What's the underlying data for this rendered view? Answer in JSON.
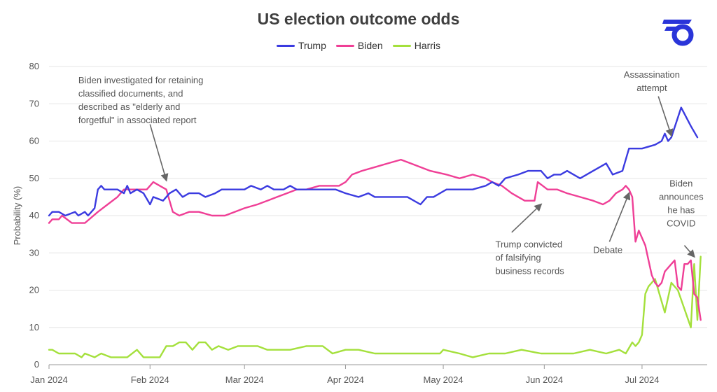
{
  "chart_data": {
    "type": "line",
    "title": "US election outcome odds",
    "ylabel": "Probability (%)",
    "xlabel": "",
    "ylim": [
      0,
      80
    ],
    "yticks": [
      0,
      10,
      20,
      30,
      40,
      50,
      60,
      70,
      80
    ],
    "xlim": [
      "2024-01-01",
      "2024-07-21"
    ],
    "xticks": [
      {
        "date": "2024-01-01",
        "label": "Jan 2024"
      },
      {
        "date": "2024-02-01",
        "label": "Feb 2024"
      },
      {
        "date": "2024-03-01",
        "label": "Mar 2024"
      },
      {
        "date": "2024-04-01",
        "label": "Apr 2024"
      },
      {
        "date": "2024-05-01",
        "label": "May 2024"
      },
      {
        "date": "2024-06-01",
        "label": "Jun 2024"
      },
      {
        "date": "2024-07-01",
        "label": "Jul 2024"
      }
    ],
    "grid": "horizontal",
    "legend_position": "top-center",
    "series": [
      {
        "name": "Trump",
        "color": "#3b3be0",
        "points": [
          [
            "2024-01-01",
            40
          ],
          [
            "2024-01-02",
            41
          ],
          [
            "2024-01-04",
            41
          ],
          [
            "2024-01-06",
            40
          ],
          [
            "2024-01-09",
            41
          ],
          [
            "2024-01-10",
            40
          ],
          [
            "2024-01-12",
            41
          ],
          [
            "2024-01-13",
            40
          ],
          [
            "2024-01-15",
            42
          ],
          [
            "2024-01-16",
            47
          ],
          [
            "2024-01-17",
            48
          ],
          [
            "2024-01-18",
            47
          ],
          [
            "2024-01-22",
            47
          ],
          [
            "2024-01-24",
            46
          ],
          [
            "2024-01-25",
            48
          ],
          [
            "2024-01-26",
            46
          ],
          [
            "2024-01-28",
            47
          ],
          [
            "2024-01-30",
            46
          ],
          [
            "2024-02-01",
            43
          ],
          [
            "2024-02-02",
            45
          ],
          [
            "2024-02-05",
            44
          ],
          [
            "2024-02-07",
            46
          ],
          [
            "2024-02-09",
            47
          ],
          [
            "2024-02-11",
            45
          ],
          [
            "2024-02-13",
            46
          ],
          [
            "2024-02-16",
            46
          ],
          [
            "2024-02-18",
            45
          ],
          [
            "2024-02-21",
            46
          ],
          [
            "2024-02-23",
            47
          ],
          [
            "2024-02-26",
            47
          ],
          [
            "2024-02-28",
            47
          ],
          [
            "2024-03-01",
            47
          ],
          [
            "2024-03-03",
            48
          ],
          [
            "2024-03-06",
            47
          ],
          [
            "2024-03-08",
            48
          ],
          [
            "2024-03-10",
            47
          ],
          [
            "2024-03-13",
            47
          ],
          [
            "2024-03-15",
            48
          ],
          [
            "2024-03-17",
            47
          ],
          [
            "2024-03-20",
            47
          ],
          [
            "2024-03-22",
            47
          ],
          [
            "2024-03-25",
            47
          ],
          [
            "2024-03-27",
            47
          ],
          [
            "2024-03-29",
            47
          ],
          [
            "2024-04-01",
            46
          ],
          [
            "2024-04-05",
            45
          ],
          [
            "2024-04-08",
            46
          ],
          [
            "2024-04-10",
            45
          ],
          [
            "2024-04-15",
            45
          ],
          [
            "2024-04-20",
            45
          ],
          [
            "2024-04-24",
            43
          ],
          [
            "2024-04-26",
            45
          ],
          [
            "2024-04-28",
            45
          ],
          [
            "2024-05-02",
            47
          ],
          [
            "2024-05-10",
            47
          ],
          [
            "2024-05-14",
            48
          ],
          [
            "2024-05-16",
            49
          ],
          [
            "2024-05-18",
            48
          ],
          [
            "2024-05-20",
            50
          ],
          [
            "2024-05-24",
            51
          ],
          [
            "2024-05-27",
            52
          ],
          [
            "2024-05-31",
            52
          ],
          [
            "2024-06-02",
            50
          ],
          [
            "2024-06-04",
            51
          ],
          [
            "2024-06-06",
            51
          ],
          [
            "2024-06-08",
            52
          ],
          [
            "2024-06-10",
            51
          ],
          [
            "2024-06-12",
            50
          ],
          [
            "2024-06-14",
            51
          ],
          [
            "2024-06-16",
            52
          ],
          [
            "2024-06-18",
            53
          ],
          [
            "2024-06-20",
            54
          ],
          [
            "2024-06-22",
            51
          ],
          [
            "2024-06-25",
            52
          ],
          [
            "2024-06-27",
            58
          ],
          [
            "2024-07-01",
            58
          ],
          [
            "2024-07-05",
            59
          ],
          [
            "2024-07-07",
            60
          ],
          [
            "2024-07-08",
            62
          ],
          [
            "2024-07-09",
            60
          ],
          [
            "2024-07-10",
            61
          ],
          [
            "2024-07-13",
            69
          ],
          [
            "2024-07-16",
            64
          ],
          [
            "2024-07-18",
            61
          ]
        ]
      },
      {
        "name": "Biden",
        "color": "#ef3f96",
        "points": [
          [
            "2024-01-01",
            38
          ],
          [
            "2024-01-02",
            39
          ],
          [
            "2024-01-04",
            39
          ],
          [
            "2024-01-05",
            40
          ],
          [
            "2024-01-08",
            38
          ],
          [
            "2024-01-10",
            38
          ],
          [
            "2024-01-12",
            38
          ],
          [
            "2024-01-16",
            41
          ],
          [
            "2024-01-19",
            43
          ],
          [
            "2024-01-22",
            45
          ],
          [
            "2024-01-24",
            47
          ],
          [
            "2024-01-26",
            47
          ],
          [
            "2024-01-28",
            47
          ],
          [
            "2024-01-31",
            47
          ],
          [
            "2024-02-02",
            49
          ],
          [
            "2024-02-04",
            48
          ],
          [
            "2024-02-06",
            47
          ],
          [
            "2024-02-08",
            41
          ],
          [
            "2024-02-10",
            40
          ],
          [
            "2024-02-13",
            41
          ],
          [
            "2024-02-16",
            41
          ],
          [
            "2024-02-20",
            40
          ],
          [
            "2024-02-24",
            40
          ],
          [
            "2024-02-27",
            41
          ],
          [
            "2024-03-01",
            42
          ],
          [
            "2024-03-05",
            43
          ],
          [
            "2024-03-08",
            44
          ],
          [
            "2024-03-11",
            45
          ],
          [
            "2024-03-14",
            46
          ],
          [
            "2024-03-17",
            47
          ],
          [
            "2024-03-20",
            47
          ],
          [
            "2024-03-24",
            48
          ],
          [
            "2024-03-27",
            48
          ],
          [
            "2024-03-30",
            48
          ],
          [
            "2024-04-01",
            49
          ],
          [
            "2024-04-03",
            51
          ],
          [
            "2024-04-06",
            52
          ],
          [
            "2024-04-10",
            53
          ],
          [
            "2024-04-14",
            54
          ],
          [
            "2024-04-18",
            55
          ],
          [
            "2024-04-21",
            54
          ],
          [
            "2024-04-24",
            53
          ],
          [
            "2024-04-27",
            52
          ],
          [
            "2024-05-02",
            51
          ],
          [
            "2024-05-06",
            50
          ],
          [
            "2024-05-10",
            51
          ],
          [
            "2024-05-14",
            50
          ],
          [
            "2024-05-16",
            49
          ],
          [
            "2024-05-19",
            48
          ],
          [
            "2024-05-22",
            46
          ],
          [
            "2024-05-24",
            45
          ],
          [
            "2024-05-26",
            44
          ],
          [
            "2024-05-29",
            44
          ],
          [
            "2024-05-30",
            49
          ],
          [
            "2024-06-02",
            47
          ],
          [
            "2024-06-05",
            47
          ],
          [
            "2024-06-08",
            46
          ],
          [
            "2024-06-12",
            45
          ],
          [
            "2024-06-16",
            44
          ],
          [
            "2024-06-19",
            43
          ],
          [
            "2024-06-21",
            44
          ],
          [
            "2024-06-23",
            46
          ],
          [
            "2024-06-25",
            47
          ],
          [
            "2024-06-26",
            48
          ],
          [
            "2024-06-27",
            47
          ],
          [
            "2024-06-28",
            45
          ],
          [
            "2024-06-29",
            33
          ],
          [
            "2024-06-30",
            36
          ],
          [
            "2024-07-02",
            32
          ],
          [
            "2024-07-03",
            28
          ],
          [
            "2024-07-04",
            24
          ],
          [
            "2024-07-05",
            22
          ],
          [
            "2024-07-06",
            21
          ],
          [
            "2024-07-07",
            22
          ],
          [
            "2024-07-08",
            25
          ],
          [
            "2024-07-10",
            27
          ],
          [
            "2024-07-11",
            28
          ],
          [
            "2024-07-12",
            21
          ],
          [
            "2024-07-13",
            20
          ],
          [
            "2024-07-14",
            27
          ],
          [
            "2024-07-15",
            27
          ],
          [
            "2024-07-16",
            28
          ],
          [
            "2024-07-17",
            19
          ],
          [
            "2024-07-18",
            18
          ],
          [
            "2024-07-19",
            12
          ]
        ]
      },
      {
        "name": "Harris",
        "color": "#a4e03c",
        "points": [
          [
            "2024-01-01",
            4
          ],
          [
            "2024-01-02",
            4
          ],
          [
            "2024-01-04",
            3
          ],
          [
            "2024-01-09",
            3
          ],
          [
            "2024-01-11",
            2
          ],
          [
            "2024-01-12",
            3
          ],
          [
            "2024-01-15",
            2
          ],
          [
            "2024-01-17",
            3
          ],
          [
            "2024-01-20",
            2
          ],
          [
            "2024-01-25",
            2
          ],
          [
            "2024-01-28",
            4
          ],
          [
            "2024-01-30",
            2
          ],
          [
            "2024-02-02",
            2
          ],
          [
            "2024-02-04",
            2
          ],
          [
            "2024-02-06",
            5
          ],
          [
            "2024-02-08",
            5
          ],
          [
            "2024-02-10",
            6
          ],
          [
            "2024-02-12",
            6
          ],
          [
            "2024-02-14",
            4
          ],
          [
            "2024-02-16",
            6
          ],
          [
            "2024-02-18",
            6
          ],
          [
            "2024-02-20",
            4
          ],
          [
            "2024-02-22",
            5
          ],
          [
            "2024-02-25",
            4
          ],
          [
            "2024-02-28",
            5
          ],
          [
            "2024-03-05",
            5
          ],
          [
            "2024-03-08",
            4
          ],
          [
            "2024-03-15",
            4
          ],
          [
            "2024-03-20",
            5
          ],
          [
            "2024-03-25",
            5
          ],
          [
            "2024-03-28",
            3
          ],
          [
            "2024-04-01",
            4
          ],
          [
            "2024-04-05",
            4
          ],
          [
            "2024-04-10",
            3
          ],
          [
            "2024-04-20",
            3
          ],
          [
            "2024-04-30",
            3
          ],
          [
            "2024-05-01",
            4
          ],
          [
            "2024-05-06",
            3
          ],
          [
            "2024-05-10",
            2
          ],
          [
            "2024-05-15",
            3
          ],
          [
            "2024-05-20",
            3
          ],
          [
            "2024-05-25",
            4
          ],
          [
            "2024-05-31",
            3
          ],
          [
            "2024-06-05",
            3
          ],
          [
            "2024-06-10",
            3
          ],
          [
            "2024-06-15",
            4
          ],
          [
            "2024-06-20",
            3
          ],
          [
            "2024-06-24",
            4
          ],
          [
            "2024-06-26",
            3
          ],
          [
            "2024-06-28",
            6
          ],
          [
            "2024-06-29",
            5
          ],
          [
            "2024-06-30",
            6
          ],
          [
            "2024-07-01",
            8
          ],
          [
            "2024-07-02",
            19
          ],
          [
            "2024-07-03",
            21
          ],
          [
            "2024-07-05",
            23
          ],
          [
            "2024-07-06",
            20
          ],
          [
            "2024-07-08",
            14
          ],
          [
            "2024-07-10",
            22
          ],
          [
            "2024-07-12",
            20
          ],
          [
            "2024-07-14",
            15
          ],
          [
            "2024-07-16",
            10
          ],
          [
            "2024-07-17",
            27
          ],
          [
            "2024-07-18",
            12
          ],
          [
            "2024-07-19",
            29
          ]
        ]
      }
    ],
    "annotations": [
      {
        "lines": [
          "Biden investigated for retaining",
          "classified documents, and",
          "described as \"elderly and",
          "forgetful\" in associated report"
        ],
        "text_date": "2024-01-10",
        "text_value": 75.5,
        "anchor": "start",
        "arrow_from": [
          "2024-02-01",
          64.5
        ],
        "arrow_to": [
          "2024-02-06",
          49.5
        ]
      },
      {
        "lines": [
          "Assassination",
          "attempt"
        ],
        "text_date": "2024-07-04",
        "text_value": 77,
        "anchor": "middle",
        "arrow_from": [
          "2024-07-06",
          72
        ],
        "arrow_to": [
          "2024-07-10",
          61.5
        ]
      },
      {
        "lines": [
          "Biden",
          "announces",
          "he has",
          "COVID"
        ],
        "text_date": "2024-07-13",
        "text_value": 47.8,
        "anchor": "middle",
        "arrow_from": [
          "2024-07-14",
          32
        ],
        "arrow_to": [
          "2024-07-17",
          29
        ]
      },
      {
        "lines": [
          "Trump convicted",
          "of falsifying",
          "business records"
        ],
        "text_date": "2024-05-17",
        "text_value": 31.5,
        "anchor": "start",
        "arrow_from": [
          "2024-05-22",
          35.5
        ],
        "arrow_to": [
          "2024-05-31",
          43
        ]
      },
      {
        "lines": [
          "Debate"
        ],
        "text_date": "2024-06-16",
        "text_value": 30,
        "anchor": "start",
        "arrow_from": [
          "2024-06-21",
          33
        ],
        "arrow_to": [
          "2024-06-27",
          46
        ]
      }
    ]
  }
}
